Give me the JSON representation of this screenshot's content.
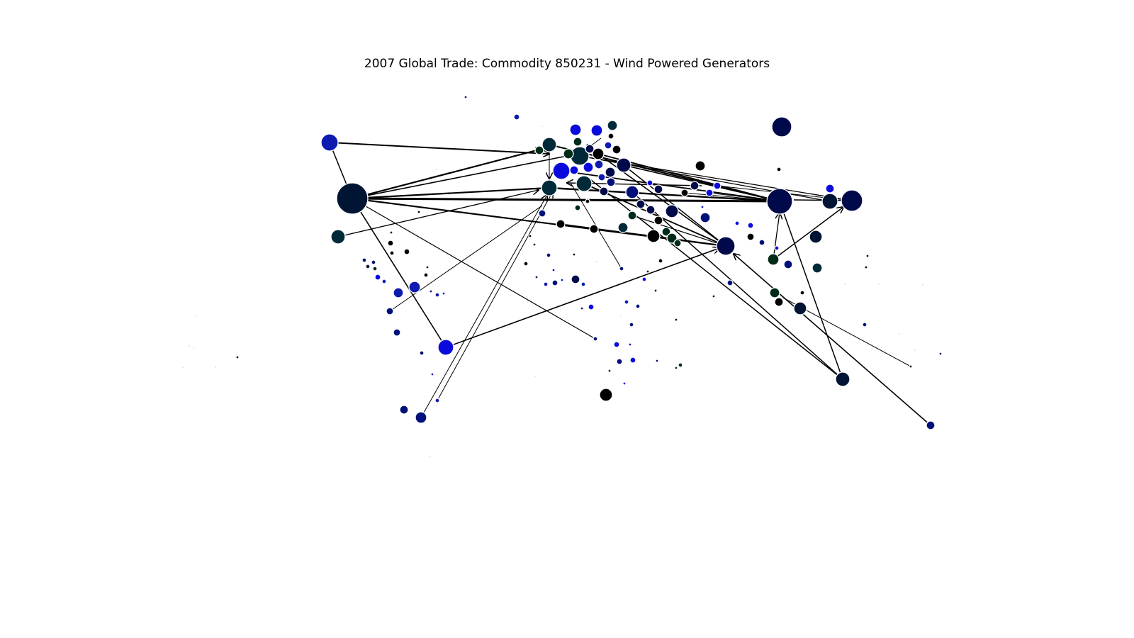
{
  "title": "2007 Global Trade: Commodity 850231 - Wind Powered Generators",
  "colors": {
    "navy": "#000a4a",
    "dark-navy": "#001433",
    "blue": "#0a0adc",
    "mid-blue": "#0d1bb0",
    "deep-blue": "#00107a",
    "dark-teal": "#002a38",
    "dark-green": "#002b18",
    "black": "#000000",
    "edge": "#000000"
  }
}
